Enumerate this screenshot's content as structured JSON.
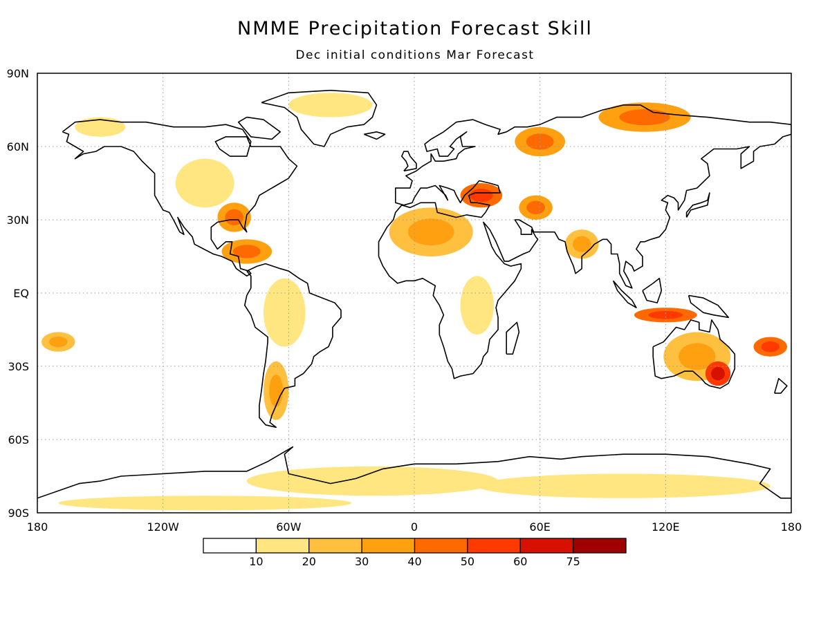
{
  "title": "NMME Precipitation Forecast Skill",
  "subtitle": "Dec initial conditions  Mar Forecast",
  "map": {
    "extent": {
      "lon": [
        -180,
        180
      ],
      "lat": [
        -90,
        90
      ]
    },
    "gridlines": "dotted",
    "lat_labels": [
      {
        "value": 90,
        "label": "90N"
      },
      {
        "value": 60,
        "label": "60N"
      },
      {
        "value": 30,
        "label": "30N"
      },
      {
        "value": 0,
        "label": "EQ"
      },
      {
        "value": -30,
        "label": "30S"
      },
      {
        "value": -60,
        "label": "60S"
      },
      {
        "value": -90,
        "label": "90S"
      }
    ],
    "lon_labels": [
      {
        "value": -180,
        "label": "180"
      },
      {
        "value": -120,
        "label": "120W"
      },
      {
        "value": -60,
        "label": "60W"
      },
      {
        "value": 0,
        "label": "0"
      },
      {
        "value": 60,
        "label": "60E"
      },
      {
        "value": 120,
        "label": "120E"
      },
      {
        "value": 180,
        "label": "180"
      }
    ],
    "coastline_color": "#000000"
  },
  "colorbar": {
    "colors": [
      "#ffffff",
      "#ffe680",
      "#ffc040",
      "#ffa010",
      "#ff6a00",
      "#ff3a00",
      "#d81000",
      "#a00000"
    ],
    "labels": [
      "10",
      "20",
      "30",
      "40",
      "50",
      "60",
      "75"
    ]
  },
  "skill_regions": [
    {
      "lon": -100,
      "lat": 45,
      "rx": 14,
      "ry": 10,
      "level": 2
    },
    {
      "lon": -86,
      "lat": 31,
      "rx": 8,
      "ry": 6,
      "level": 4
    },
    {
      "lon": -80,
      "lat": 17,
      "rx": 12,
      "ry": 5,
      "level": 4
    },
    {
      "lon": -62,
      "lat": -8,
      "rx": 10,
      "ry": 14,
      "level": 2
    },
    {
      "lon": -66,
      "lat": -40,
      "rx": 6,
      "ry": 12,
      "level": 3
    },
    {
      "lon": 8,
      "lat": 25,
      "rx": 20,
      "ry": 10,
      "level": 3
    },
    {
      "lon": 32,
      "lat": 40,
      "rx": 10,
      "ry": 5,
      "level": 5
    },
    {
      "lon": 60,
      "lat": 62,
      "rx": 12,
      "ry": 6,
      "level": 4
    },
    {
      "lon": 110,
      "lat": 72,
      "rx": 22,
      "ry": 6,
      "level": 4
    },
    {
      "lon": 58,
      "lat": 35,
      "rx": 8,
      "ry": 5,
      "level": 4
    },
    {
      "lon": 135,
      "lat": -26,
      "rx": 16,
      "ry": 10,
      "level": 3
    },
    {
      "lon": 145,
      "lat": -33,
      "rx": 6,
      "ry": 5,
      "level": 6
    },
    {
      "lon": 120,
      "lat": -9,
      "rx": 15,
      "ry": 3,
      "level": 5
    },
    {
      "lon": 170,
      "lat": -22,
      "rx": 8,
      "ry": 4,
      "level": 5
    },
    {
      "lon": 30,
      "lat": -5,
      "rx": 8,
      "ry": 12,
      "level": 2
    },
    {
      "lon": -20,
      "lat": -77,
      "rx": 60,
      "ry": 6,
      "level": 1
    },
    {
      "lon": 100,
      "lat": -79,
      "rx": 70,
      "ry": 5,
      "level": 1
    },
    {
      "lon": -100,
      "lat": -86,
      "rx": 70,
      "ry": 3,
      "level": 1
    },
    {
      "lon": -150,
      "lat": 68,
      "rx": 12,
      "ry": 4,
      "level": 2
    },
    {
      "lon": -40,
      "lat": 77,
      "rx": 20,
      "ry": 5,
      "level": 1
    },
    {
      "lon": -170,
      "lat": -20,
      "rx": 8,
      "ry": 4,
      "level": 3
    },
    {
      "lon": 80,
      "lat": 20,
      "rx": 8,
      "ry": 6,
      "level": 3
    }
  ]
}
